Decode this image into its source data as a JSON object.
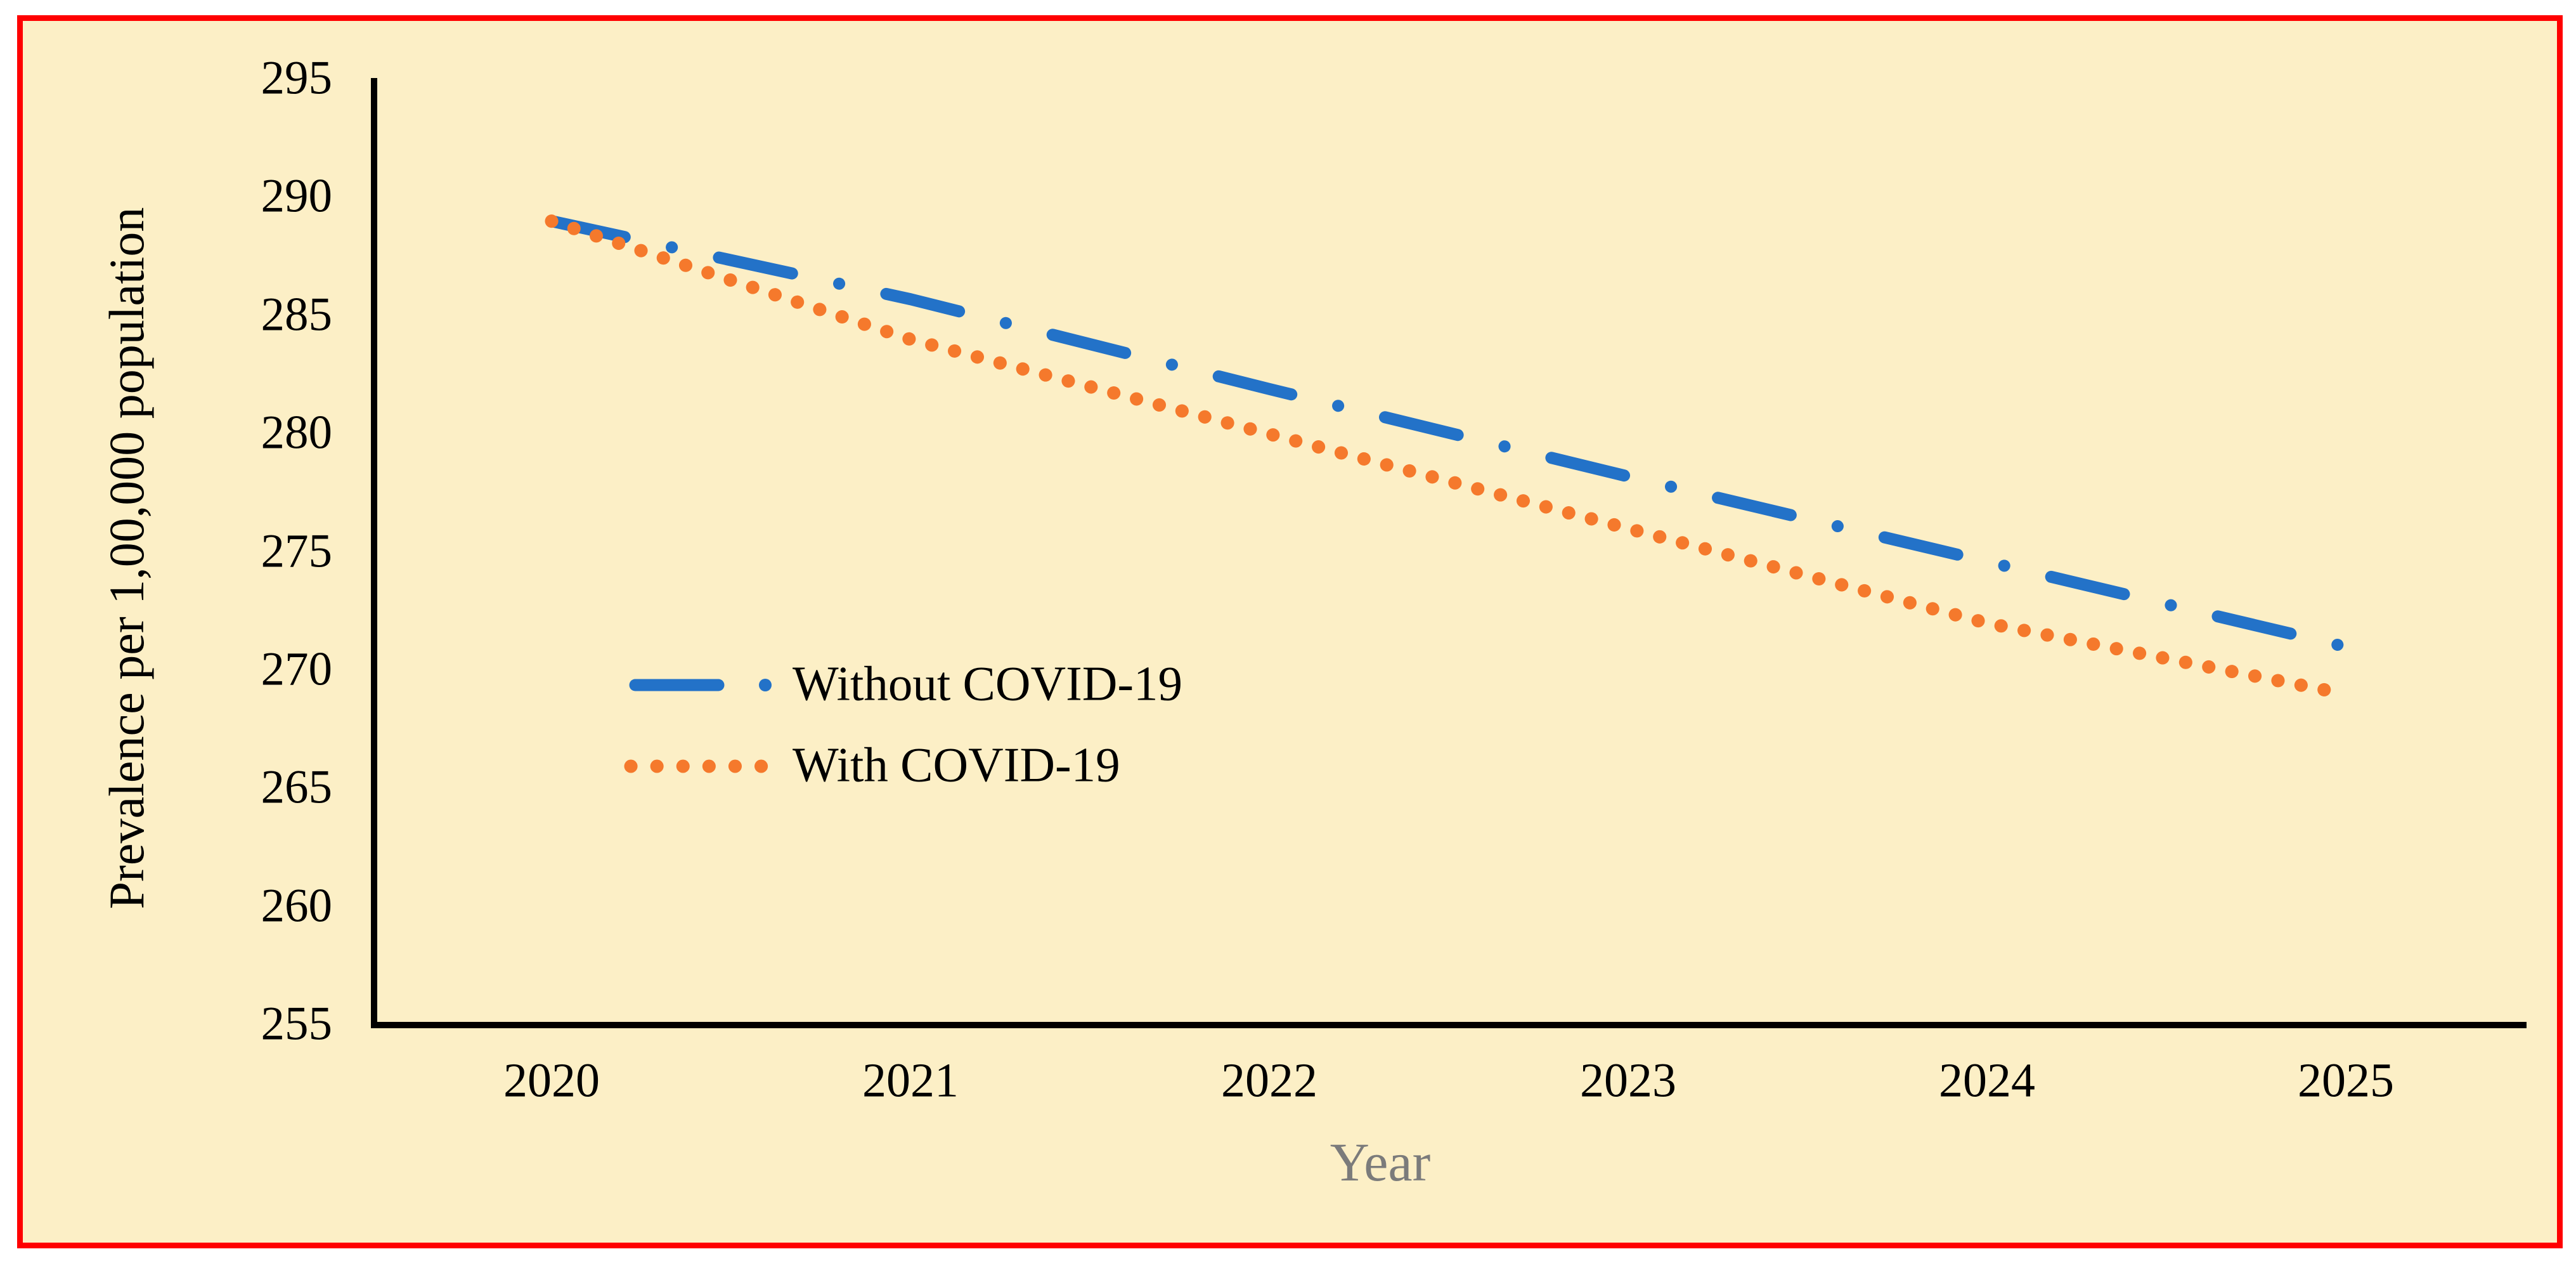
{
  "chart_data": {
    "type": "line",
    "x": [
      2020,
      2021,
      2022,
      2023,
      2024,
      2025
    ],
    "series": [
      {
        "name": "Without COVID-19",
        "values": [
          289,
          285.7,
          281.9,
          278.2,
          274.6,
          271
        ],
        "color": "#2372C8",
        "line_style": "dash-dot"
      },
      {
        "name": "With COVID-19",
        "values": [
          289,
          284,
          280,
          276,
          272,
          269
        ],
        "color": "#F5792C",
        "line_style": "dotted"
      }
    ],
    "title": "",
    "xlabel": "Year",
    "ylabel": "Prevalence per 1,00,000 population",
    "ylim": [
      255,
      295
    ],
    "ytick_step": 5,
    "xlim": [
      2020,
      2025
    ],
    "grid": false,
    "legend_position": "inside-center-left"
  },
  "colors": {
    "page_background": "#FFFFFF",
    "chart_background": "#FCEFC6",
    "border": "#FF0000",
    "axis": "#000000",
    "tick_text": "#000000",
    "xlabel_text": "#7B7B7B",
    "ylabel_text": "#000000"
  }
}
